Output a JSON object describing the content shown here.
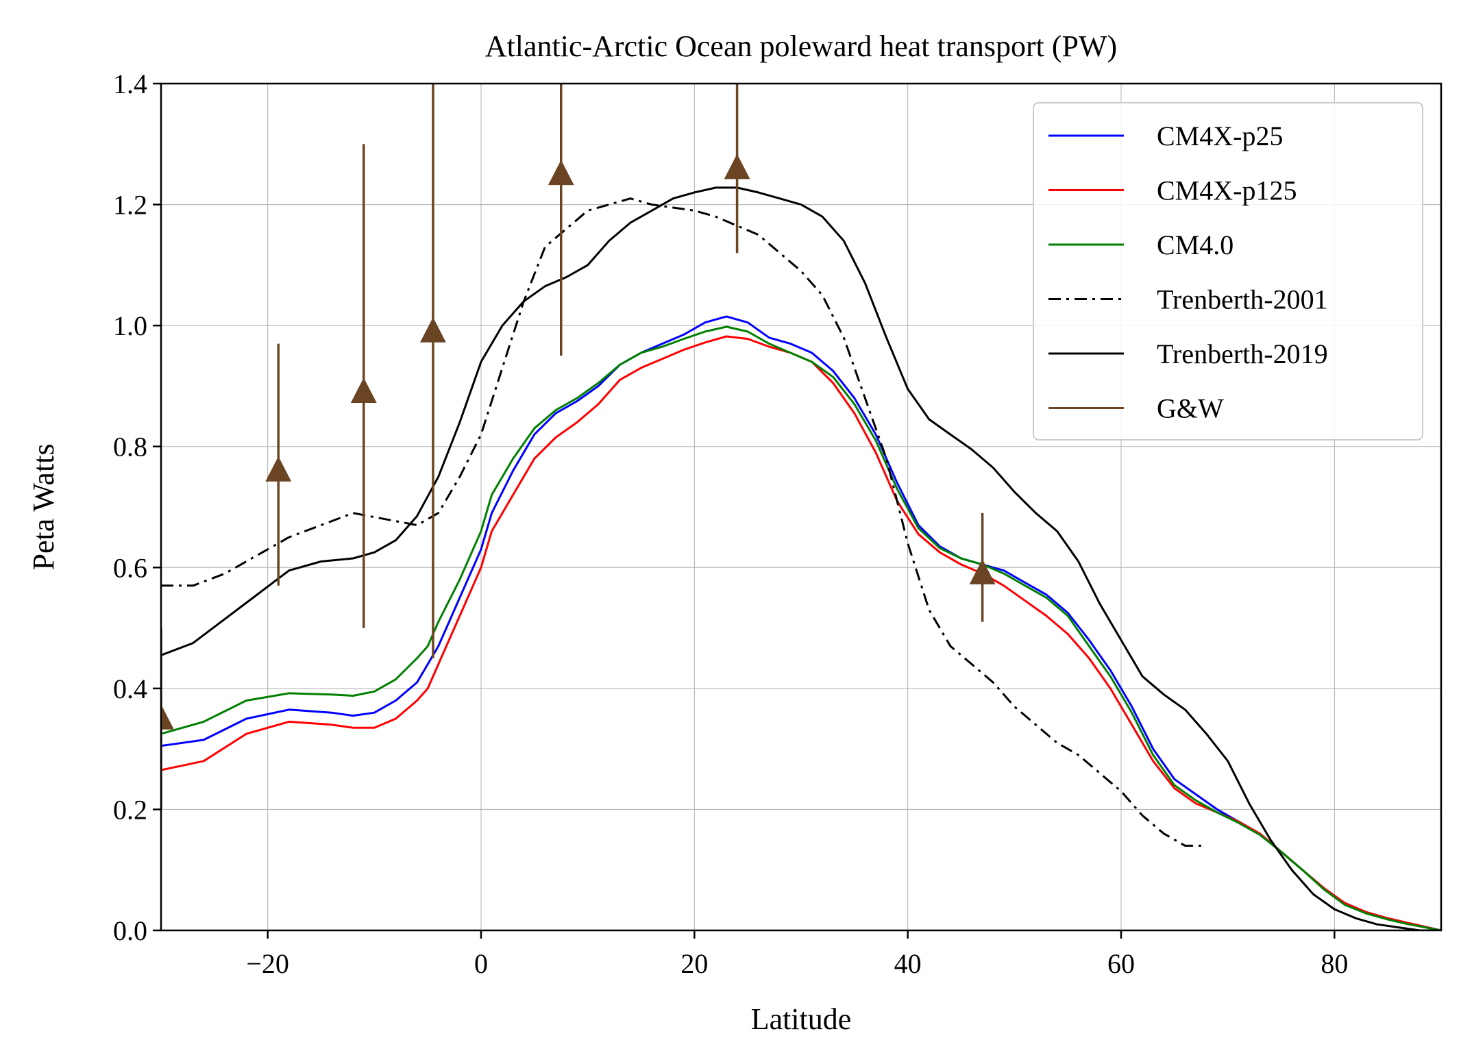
{
  "chart_data": {
    "type": "line",
    "title": "Atlantic-Arctic Ocean poleward heat transport (PW)",
    "xlabel": "Latitude",
    "ylabel": "Peta Watts",
    "xlim": [
      -30,
      90
    ],
    "ylim": [
      0.0,
      1.4
    ],
    "xticks": [
      -20,
      0,
      20,
      40,
      60,
      80
    ],
    "xtick_labels": [
      "−20",
      "0",
      "20",
      "40",
      "60",
      "80"
    ],
    "yticks": [
      0.0,
      0.2,
      0.4,
      0.6,
      0.8,
      1.0,
      1.2,
      1.4
    ],
    "ytick_labels": [
      "0.0",
      "0.2",
      "0.4",
      "0.6",
      "0.8",
      "1.0",
      "1.2",
      "1.4"
    ],
    "grid": true,
    "legend_position": "top-right",
    "series": [
      {
        "name": "CM4X-p25",
        "color": "#0000ff",
        "style": "solid",
        "x": [
          -30,
          -26,
          -22,
          -18,
          -14,
          -12,
          -10,
          -8,
          -6,
          -5,
          -4,
          -2,
          0,
          1,
          3,
          5,
          7,
          9,
          11,
          13,
          15,
          17,
          19,
          21,
          23,
          25,
          27,
          29,
          31,
          33,
          35,
          37,
          39,
          41,
          43,
          45,
          47,
          49,
          51,
          53,
          55,
          57,
          59,
          61,
          63,
          65,
          67,
          69,
          71,
          73,
          75,
          77,
          79,
          81,
          83,
          85,
          87,
          90
        ],
        "y": [
          0.305,
          0.315,
          0.35,
          0.365,
          0.36,
          0.355,
          0.36,
          0.38,
          0.41,
          0.44,
          0.47,
          0.55,
          0.63,
          0.69,
          0.76,
          0.82,
          0.855,
          0.875,
          0.9,
          0.935,
          0.955,
          0.97,
          0.985,
          1.005,
          1.015,
          1.005,
          0.98,
          0.97,
          0.955,
          0.925,
          0.88,
          0.82,
          0.74,
          0.67,
          0.635,
          0.615,
          0.605,
          0.595,
          0.575,
          0.555,
          0.525,
          0.48,
          0.43,
          0.37,
          0.3,
          0.25,
          0.225,
          0.2,
          0.18,
          0.16,
          0.13,
          0.1,
          0.07,
          0.045,
          0.03,
          0.02,
          0.012,
          0.0
        ]
      },
      {
        "name": "CM4X-p125",
        "color": "#ff0000",
        "style": "solid",
        "x": [
          -30,
          -26,
          -22,
          -18,
          -14,
          -12,
          -10,
          -8,
          -6,
          -5,
          -4,
          -2,
          0,
          1,
          3,
          5,
          7,
          9,
          11,
          13,
          15,
          17,
          19,
          21,
          23,
          25,
          27,
          29,
          31,
          33,
          35,
          37,
          39,
          41,
          43,
          45,
          47,
          49,
          51,
          53,
          55,
          57,
          59,
          61,
          63,
          65,
          67,
          69,
          71,
          73,
          75,
          77,
          79,
          81,
          83,
          85,
          87,
          90
        ],
        "y": [
          0.265,
          0.28,
          0.325,
          0.345,
          0.34,
          0.335,
          0.335,
          0.35,
          0.38,
          0.4,
          0.44,
          0.52,
          0.6,
          0.66,
          0.72,
          0.78,
          0.815,
          0.84,
          0.87,
          0.91,
          0.93,
          0.945,
          0.96,
          0.972,
          0.982,
          0.978,
          0.965,
          0.955,
          0.94,
          0.905,
          0.855,
          0.79,
          0.71,
          0.655,
          0.625,
          0.605,
          0.59,
          0.57,
          0.545,
          0.52,
          0.49,
          0.45,
          0.4,
          0.34,
          0.28,
          0.235,
          0.21,
          0.195,
          0.18,
          0.16,
          0.13,
          0.1,
          0.07,
          0.045,
          0.03,
          0.02,
          0.012,
          0.0
        ]
      },
      {
        "name": "CM4.0",
        "color": "#008000",
        "style": "solid",
        "x": [
          -30,
          -26,
          -22,
          -18,
          -14,
          -12,
          -10,
          -8,
          -6,
          -5,
          -4,
          -2,
          0,
          1,
          3,
          5,
          7,
          9,
          11,
          13,
          15,
          17,
          19,
          21,
          23,
          25,
          27,
          29,
          31,
          33,
          35,
          37,
          39,
          41,
          43,
          45,
          47,
          49,
          51,
          53,
          55,
          57,
          59,
          61,
          63,
          65,
          67,
          69,
          71,
          73,
          75,
          77,
          79,
          81,
          83,
          85,
          87,
          90
        ],
        "y": [
          0.325,
          0.345,
          0.38,
          0.392,
          0.39,
          0.388,
          0.395,
          0.415,
          0.45,
          0.47,
          0.51,
          0.58,
          0.66,
          0.72,
          0.78,
          0.83,
          0.86,
          0.88,
          0.905,
          0.935,
          0.955,
          0.965,
          0.978,
          0.99,
          0.998,
          0.99,
          0.97,
          0.955,
          0.94,
          0.915,
          0.87,
          0.81,
          0.73,
          0.665,
          0.632,
          0.615,
          0.605,
          0.59,
          0.57,
          0.55,
          0.52,
          0.47,
          0.42,
          0.36,
          0.29,
          0.24,
          0.215,
          0.195,
          0.178,
          0.158,
          0.13,
          0.1,
          0.068,
          0.042,
          0.028,
          0.018,
          0.01,
          0.0
        ]
      },
      {
        "name": "Trenberth-2001",
        "color": "#000000",
        "style": "dashdot",
        "x": [
          -30,
          -27,
          -24,
          -21,
          -18,
          -15,
          -12,
          -9,
          -6,
          -4,
          -2,
          0,
          2,
          4,
          6,
          8,
          10,
          12,
          14,
          16,
          18,
          20,
          22,
          24,
          26,
          28,
          30,
          32,
          34,
          36,
          38,
          40,
          42,
          44,
          46,
          48,
          50,
          52,
          54,
          56,
          58,
          60,
          62,
          64,
          66,
          68
        ],
        "y": [
          0.57,
          0.57,
          0.59,
          0.62,
          0.65,
          0.67,
          0.69,
          0.68,
          0.67,
          0.69,
          0.75,
          0.82,
          0.93,
          1.04,
          1.13,
          1.16,
          1.19,
          1.2,
          1.21,
          1.2,
          1.195,
          1.19,
          1.18,
          1.165,
          1.15,
          1.12,
          1.09,
          1.05,
          0.98,
          0.88,
          0.78,
          0.64,
          0.53,
          0.47,
          0.44,
          0.41,
          0.37,
          0.34,
          0.31,
          0.29,
          0.26,
          0.23,
          0.19,
          0.16,
          0.14,
          0.14
        ]
      },
      {
        "name": "Trenberth-2019",
        "color": "#000000",
        "style": "solid",
        "x": [
          -30,
          -27,
          -24,
          -21,
          -18,
          -15,
          -12,
          -10,
          -8,
          -6,
          -4,
          -2,
          0,
          2,
          4,
          6,
          8,
          10,
          12,
          14,
          16,
          18,
          20,
          22,
          24,
          26,
          28,
          30,
          32,
          34,
          36,
          38,
          40,
          42,
          44,
          46,
          48,
          50,
          52,
          54,
          56,
          58,
          60,
          62,
          64,
          66,
          68,
          70,
          72,
          74,
          76,
          78,
          80,
          82,
          84,
          86,
          88,
          90
        ],
        "y": [
          0.455,
          0.475,
          0.515,
          0.555,
          0.595,
          0.61,
          0.615,
          0.625,
          0.645,
          0.685,
          0.75,
          0.84,
          0.94,
          1.0,
          1.04,
          1.065,
          1.08,
          1.1,
          1.14,
          1.17,
          1.19,
          1.21,
          1.22,
          1.228,
          1.228,
          1.22,
          1.21,
          1.2,
          1.18,
          1.14,
          1.07,
          0.98,
          0.895,
          0.845,
          0.82,
          0.795,
          0.765,
          0.725,
          0.69,
          0.66,
          0.61,
          0.54,
          0.48,
          0.42,
          0.39,
          0.365,
          0.325,
          0.28,
          0.21,
          0.15,
          0.1,
          0.06,
          0.035,
          0.02,
          0.01,
          0.005,
          0.0,
          0.0
        ]
      }
    ],
    "observations": {
      "name": "G&W",
      "color": "#6b4423",
      "points": [
        {
          "x": -30,
          "y": 0.35,
          "ylow": 0.2,
          "yhigh": 0.5
        },
        {
          "x": -19,
          "y": 0.76,
          "ylow": 0.57,
          "yhigh": 0.97
        },
        {
          "x": -11,
          "y": 0.89,
          "ylow": 0.5,
          "yhigh": 1.3
        },
        {
          "x": -4.5,
          "y": 0.99,
          "ylow": 0.45,
          "yhigh": 1.4
        },
        {
          "x": 7.5,
          "y": 1.25,
          "ylow": 0.95,
          "yhigh": 1.4
        },
        {
          "x": 24,
          "y": 1.26,
          "ylow": 1.12,
          "yhigh": 1.4
        },
        {
          "x": 47,
          "y": 0.59,
          "ylow": 0.51,
          "yhigh": 0.69
        }
      ]
    },
    "legend": [
      {
        "label": "CM4X-p25",
        "color": "#0000ff",
        "style": "solid"
      },
      {
        "label": "CM4X-p125",
        "color": "#ff0000",
        "style": "solid"
      },
      {
        "label": "CM4.0",
        "color": "#008000",
        "style": "solid"
      },
      {
        "label": "Trenberth-2001",
        "color": "#000000",
        "style": "dashdot"
      },
      {
        "label": "Trenberth-2019",
        "color": "#000000",
        "style": "solid"
      },
      {
        "label": "G&W",
        "color": "#6b4423",
        "style": "solid"
      }
    ]
  }
}
